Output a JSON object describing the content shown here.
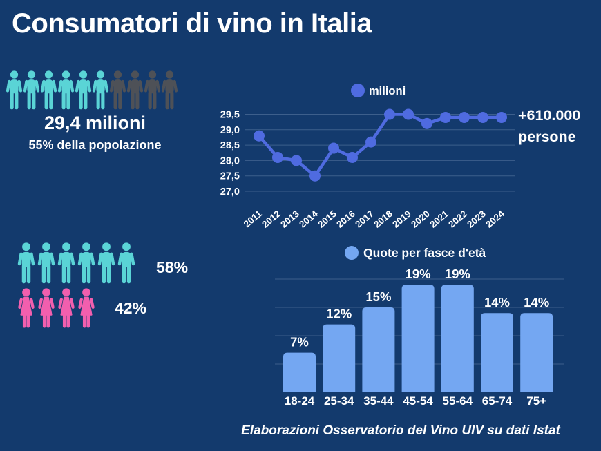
{
  "page": {
    "title": "Consumatori di vino in Italia",
    "footer": "Elaborazioni Osservatorio del Vino UIV su dati Istat"
  },
  "colors": {
    "background": "#133a6d",
    "teal_person": "#5ad4d6",
    "gray_person": "#4e5157",
    "pink_person": "#f25fae",
    "line_blue": "#4f6be0",
    "bar_blue": "#74a7f2",
    "text": "#ffffff",
    "gridline": "rgba(186,208,235,0.25)"
  },
  "population_stat": {
    "icons_total": 10,
    "icons_highlighted": 6,
    "value": "29,4 milioni",
    "share": "55% della popolazione"
  },
  "annotation": {
    "line1": "+610.000",
    "line2": "persone"
  },
  "gender_split": {
    "male": {
      "icons": 6,
      "label": "58%"
    },
    "female": {
      "icons": 4,
      "label": "42%"
    }
  },
  "chart_data": [
    {
      "type": "line",
      "legend": "milioni",
      "x": [
        "2011",
        "2012",
        "2013",
        "2014",
        "2015",
        "2016",
        "2017",
        "2018",
        "2019",
        "2020",
        "2021",
        "2022",
        "2023",
        "2024"
      ],
      "values": [
        28.8,
        28.1,
        28.0,
        27.5,
        28.4,
        28.1,
        28.6,
        29.5,
        29.5,
        29.2,
        29.4,
        29.4,
        29.4,
        29.4
      ],
      "ylim": [
        27.0,
        29.5
      ],
      "ytick_step": 0.5,
      "ytick_labels": [
        "27,0",
        "27,5",
        "28,0",
        "28,5",
        "29,0",
        "29,5"
      ],
      "grid": true,
      "legend_position": "top"
    },
    {
      "type": "bar",
      "legend": "Quote per fasce d'età",
      "categories": [
        "18-24",
        "25-34",
        "35-44",
        "45-54",
        "55-64",
        "65-74",
        "75+"
      ],
      "values": [
        7,
        12,
        15,
        19,
        19,
        14,
        14
      ],
      "value_labels": [
        "7%",
        "12%",
        "15%",
        "19%",
        "19%",
        "14%",
        "14%"
      ],
      "ylim": [
        0,
        20
      ],
      "grid_step": 5,
      "grid": true,
      "legend_position": "top"
    }
  ]
}
